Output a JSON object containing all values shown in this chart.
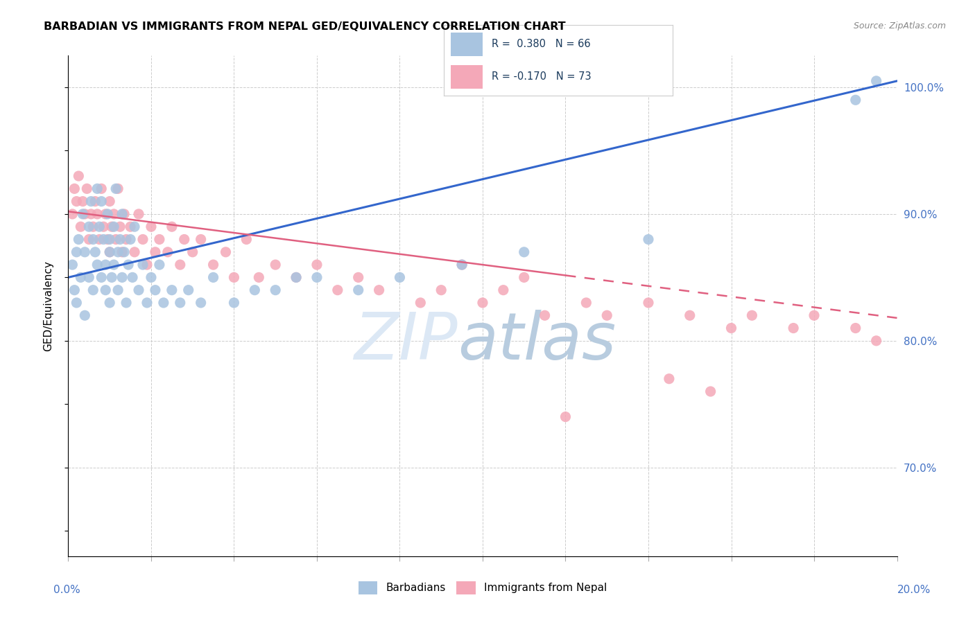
{
  "title": "BARBADIAN VS IMMIGRANTS FROM NEPAL GED/EQUIVALENCY CORRELATION CHART",
  "source": "Source: ZipAtlas.com",
  "ylabel": "GED/Equivalency",
  "right_yticks": [
    70.0,
    80.0,
    90.0,
    100.0
  ],
  "barbadians_color": "#a8c4e0",
  "nepal_color": "#f4a8b8",
  "trend_blue": "#3366cc",
  "trend_pink": "#e06080",
  "watermark_zip": "ZIP",
  "watermark_atlas": "atlas",
  "watermark_color_zip": "#d0dff0",
  "watermark_color_atlas": "#b8cce8",
  "xmin": 0.0,
  "xmax": 20.0,
  "ymin": 63.0,
  "ymax": 102.5,
  "blue_line_x0": 0.0,
  "blue_line_y0": 85.0,
  "blue_line_x1": 20.0,
  "blue_line_y1": 100.5,
  "pink_line_x0": 0.0,
  "pink_line_y0": 90.2,
  "pink_line_x1": 20.0,
  "pink_line_y1": 81.8,
  "pink_solid_end": 12.0,
  "barbadians_x": [
    0.1,
    0.15,
    0.2,
    0.2,
    0.25,
    0.3,
    0.35,
    0.4,
    0.4,
    0.5,
    0.5,
    0.55,
    0.6,
    0.6,
    0.65,
    0.7,
    0.7,
    0.75,
    0.8,
    0.8,
    0.85,
    0.9,
    0.9,
    0.95,
    1.0,
    1.0,
    1.0,
    1.05,
    1.1,
    1.1,
    1.15,
    1.2,
    1.2,
    1.25,
    1.3,
    1.3,
    1.35,
    1.4,
    1.45,
    1.5,
    1.55,
    1.6,
    1.7,
    1.8,
    1.9,
    2.0,
    2.1,
    2.2,
    2.3,
    2.5,
    2.7,
    2.9,
    3.2,
    3.5,
    4.0,
    4.5,
    5.0,
    5.5,
    6.0,
    7.0,
    8.0,
    9.5,
    11.0,
    14.0,
    19.0,
    19.5
  ],
  "barbadians_y": [
    86.0,
    84.0,
    87.0,
    83.0,
    88.0,
    85.0,
    90.0,
    87.0,
    82.0,
    89.0,
    85.0,
    91.0,
    88.0,
    84.0,
    87.0,
    92.0,
    86.0,
    89.0,
    85.0,
    91.0,
    88.0,
    86.0,
    84.0,
    90.0,
    87.0,
    83.0,
    88.0,
    85.0,
    89.0,
    86.0,
    92.0,
    87.0,
    84.0,
    88.0,
    85.0,
    90.0,
    87.0,
    83.0,
    86.0,
    88.0,
    85.0,
    89.0,
    84.0,
    86.0,
    83.0,
    85.0,
    84.0,
    86.0,
    83.0,
    84.0,
    83.0,
    84.0,
    83.0,
    85.0,
    83.0,
    84.0,
    84.0,
    85.0,
    85.0,
    84.0,
    85.0,
    86.0,
    87.0,
    88.0,
    99.0,
    100.5
  ],
  "nepal_x": [
    0.1,
    0.15,
    0.2,
    0.25,
    0.3,
    0.35,
    0.4,
    0.45,
    0.5,
    0.55,
    0.6,
    0.65,
    0.7,
    0.75,
    0.8,
    0.85,
    0.9,
    0.95,
    1.0,
    1.0,
    1.05,
    1.1,
    1.15,
    1.2,
    1.25,
    1.3,
    1.35,
    1.4,
    1.5,
    1.6,
    1.7,
    1.8,
    1.9,
    2.0,
    2.1,
    2.2,
    2.4,
    2.5,
    2.7,
    2.8,
    3.0,
    3.2,
    3.5,
    3.8,
    4.0,
    4.3,
    4.6,
    5.0,
    5.5,
    6.0,
    6.5,
    7.0,
    7.5,
    8.5,
    9.0,
    10.0,
    11.5,
    12.5,
    13.0,
    14.0,
    15.0,
    16.0,
    16.5,
    17.5,
    18.0,
    19.0,
    19.5,
    9.5,
    10.5,
    11.0,
    14.5,
    15.5,
    12.0
  ],
  "nepal_y": [
    90.0,
    92.0,
    91.0,
    93.0,
    89.0,
    91.0,
    90.0,
    92.0,
    88.0,
    90.0,
    89.0,
    91.0,
    90.0,
    88.0,
    92.0,
    89.0,
    90.0,
    88.0,
    91.0,
    87.0,
    89.0,
    90.0,
    88.0,
    92.0,
    89.0,
    87.0,
    90.0,
    88.0,
    89.0,
    87.0,
    90.0,
    88.0,
    86.0,
    89.0,
    87.0,
    88.0,
    87.0,
    89.0,
    86.0,
    88.0,
    87.0,
    88.0,
    86.0,
    87.0,
    85.0,
    88.0,
    85.0,
    86.0,
    85.0,
    86.0,
    84.0,
    85.0,
    84.0,
    83.0,
    84.0,
    83.0,
    82.0,
    83.0,
    82.0,
    83.0,
    82.0,
    81.0,
    82.0,
    81.0,
    82.0,
    81.0,
    80.0,
    86.0,
    84.0,
    85.0,
    77.0,
    76.0,
    74.0
  ]
}
